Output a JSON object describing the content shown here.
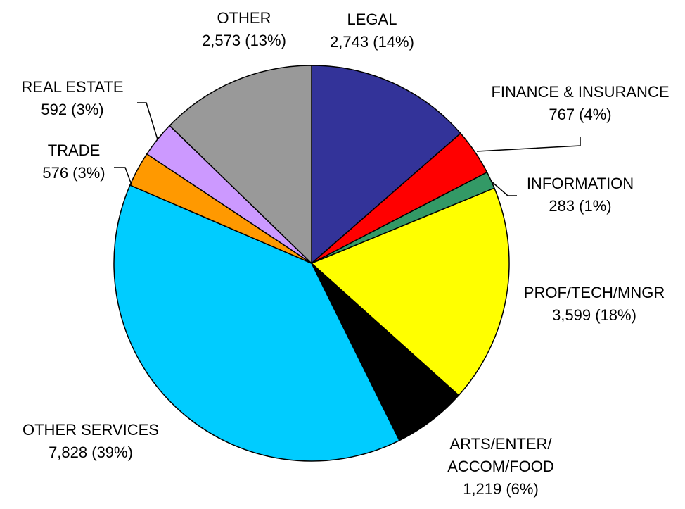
{
  "chart_data": {
    "type": "pie",
    "categories": [
      "LEGAL",
      "FINANCE & INSURANCE",
      "INFORMATION",
      "PROF/TECH/MNGR",
      "ARTS/ENTER/\nACCOM/FOOD",
      "OTHER SERVICES",
      "TRADE",
      "REAL ESTATE",
      "OTHER"
    ],
    "values": [
      2743,
      767,
      283,
      3599,
      1219,
      7828,
      576,
      592,
      2573
    ],
    "value_labels": [
      "2,743 (14%)",
      "767 (4%)",
      "283 (1%)",
      "3,599 (18%)",
      "1,219 (6%)",
      "7,828 (39%)",
      "576 (3%)",
      "592 (3%)",
      "2,573 (13%)"
    ],
    "colors": [
      "#333399",
      "#ff0000",
      "#339966",
      "#ffff00",
      "#000000",
      "#00ccff",
      "#ff9900",
      "#cc99ff",
      "#999999"
    ]
  }
}
